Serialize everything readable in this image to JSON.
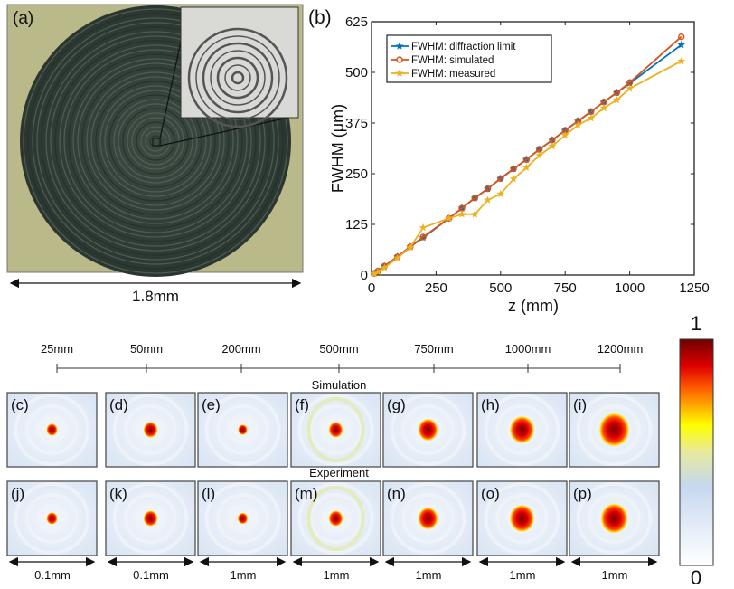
{
  "panel_a": {
    "label": "(a)",
    "scale_label": "1.8mm"
  },
  "chart_data": {
    "type": "line",
    "panel_label": "(b)",
    "xlabel": "z (mm)",
    "ylabel": "FWHM (μm)",
    "xlim": [
      0,
      1250
    ],
    "ylim": [
      0,
      625
    ],
    "xticks": [
      "0",
      "250",
      "500",
      "750",
      "1000",
      "1250"
    ],
    "yticks": [
      "0",
      "125",
      "250",
      "375",
      "500",
      "625"
    ],
    "legend_position": "top-left",
    "x": [
      10,
      25,
      50,
      100,
      150,
      200,
      300,
      350,
      400,
      450,
      500,
      550,
      600,
      650,
      700,
      750,
      800,
      850,
      900,
      950,
      1000,
      1200
    ],
    "series": [
      {
        "name": "FWHM: diffraction limit",
        "color": "#0072BD",
        "marker": "star",
        "values": [
          4,
          10,
          22,
          45,
          70,
          92,
          140,
          165,
          190,
          213,
          238,
          262,
          285,
          310,
          333,
          357,
          380,
          403,
          427,
          450,
          473,
          568
        ]
      },
      {
        "name": "FWHM: simulated",
        "color": "#D95319",
        "marker": "circle",
        "values": [
          4,
          10,
          22,
          45,
          70,
          94,
          140,
          165,
          190,
          213,
          238,
          262,
          285,
          310,
          333,
          357,
          380,
          403,
          427,
          450,
          475,
          588
        ]
      },
      {
        "name": "FWHM: measured",
        "color": "#EDB120",
        "marker": "star",
        "values": [
          3,
          8,
          18,
          42,
          68,
          117,
          140,
          150,
          150,
          185,
          200,
          237,
          265,
          295,
          318,
          345,
          370,
          387,
          412,
          432,
          460,
          528
        ]
      }
    ]
  },
  "distances": [
    "25mm",
    "50mm",
    "200mm",
    "500mm",
    "750mm",
    "1000mm",
    "1200mm"
  ],
  "row_titles": {
    "simulation": "Simulation",
    "experiment": "Experiment"
  },
  "sim_panels": [
    {
      "label": "(c)",
      "spot": 0.06
    },
    {
      "label": "(d)",
      "spot": 0.1
    },
    {
      "label": "(e)",
      "spot": 0.04
    },
    {
      "label": "(f)",
      "spot": 0.1
    },
    {
      "label": "(g)",
      "spot": 0.17
    },
    {
      "label": "(h)",
      "spot": 0.23
    },
    {
      "label": "(i)",
      "spot": 0.3
    }
  ],
  "exp_panels": [
    {
      "label": "(j)",
      "spot": 0.06
    },
    {
      "label": "(k)",
      "spot": 0.1
    },
    {
      "label": "(l)",
      "spot": 0.05
    },
    {
      "label": "(m)",
      "spot": 0.1
    },
    {
      "label": "(n)",
      "spot": 0.17
    },
    {
      "label": "(o)",
      "spot": 0.23
    },
    {
      "label": "(p)",
      "spot": 0.26
    }
  ],
  "scales": [
    "0.1mm",
    "0.1mm",
    "1mm",
    "1mm",
    "1mm",
    "1mm",
    "1mm"
  ],
  "colorbar": {
    "max_label": "1",
    "min_label": "0"
  }
}
